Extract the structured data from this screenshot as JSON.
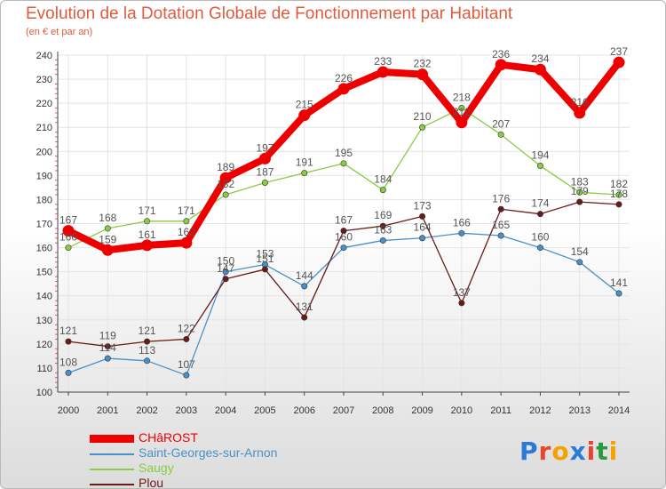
{
  "header": {
    "title": "Evolution de la Dotation Globale de Fonctionnement par Habitant",
    "subtitle": "(en € et par an)"
  },
  "colors": {
    "title": "#e05a3e",
    "axis": "#444444",
    "grid": "#e4e4e4",
    "tick_marks": "#e06060",
    "value_label": "#555555"
  },
  "chart_data": {
    "type": "line",
    "x": [
      "2000",
      "2001",
      "2002",
      "2003",
      "2004",
      "2005",
      "2006",
      "2007",
      "2008",
      "2009",
      "2010",
      "2011",
      "2012",
      "2013",
      "2014"
    ],
    "ylim": [
      100,
      240
    ],
    "yticks": [
      100,
      110,
      120,
      130,
      140,
      150,
      160,
      170,
      180,
      190,
      200,
      210,
      220,
      230,
      240
    ],
    "grid": true,
    "legend_position": "bottom-left",
    "series": [
      {
        "name": "CHâROST",
        "color": "#ee0000",
        "emphasis": true,
        "values": [
          167,
          159,
          161,
          162,
          189,
          197,
          215,
          226,
          233,
          232,
          212,
          236,
          234,
          216,
          237
        ],
        "labels": [
          "167",
          "159",
          "161",
          "162",
          "189",
          "197",
          "215",
          "226",
          "233",
          "232",
          "212",
          "236",
          "234",
          "216",
          "237"
        ]
      },
      {
        "name": "Saint-Georges-sur-Arnon",
        "color": "#4a90c8",
        "emphasis": false,
        "values": [
          108,
          114,
          113,
          107,
          150,
          153,
          144,
          160,
          163,
          164,
          166,
          165,
          160,
          154,
          141
        ],
        "labels": [
          "108",
          "114",
          "113",
          "107",
          "150",
          "153",
          "144",
          "160",
          "163",
          "164",
          "166",
          "165",
          "160",
          "154",
          "141"
        ]
      },
      {
        "name": "Saugy",
        "color": "#88cc44",
        "emphasis": false,
        "values": [
          160,
          168,
          171,
          171,
          182,
          187,
          191,
          195,
          184,
          210,
          218,
          207,
          194,
          183,
          182
        ],
        "labels": [
          "160",
          "168",
          "171",
          "171",
          "182",
          "187",
          "191",
          "195",
          "184",
          "210",
          "218",
          "207",
          "194",
          "183",
          "182"
        ]
      },
      {
        "name": "Plou",
        "color": "#6b1a1a",
        "emphasis": false,
        "values": [
          121,
          119,
          121,
          122,
          147,
          151,
          131,
          167,
          169,
          173,
          137,
          176,
          174,
          179,
          178
        ],
        "labels": [
          "121",
          "119",
          "121",
          "122",
          "147",
          "151",
          "131",
          "167",
          "169",
          "173",
          "137",
          "176",
          "174",
          "179",
          "178"
        ]
      }
    ]
  },
  "logo": {
    "letters": [
      "P",
      "r",
      "o",
      "x",
      "i",
      "t",
      "i"
    ],
    "colors": [
      "#2a7bd5",
      "#e8452c",
      "#f5a100",
      "#2a7bd5",
      "#e8452c",
      "#2a9b3a",
      "#f5a100"
    ]
  }
}
